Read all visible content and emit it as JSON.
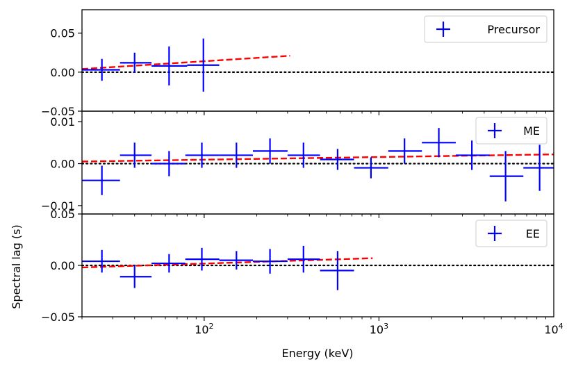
{
  "chart_data": {
    "type": "scatter",
    "layout": "three vertically stacked panels sharing a logarithmic x axis",
    "xscale": "log",
    "xlim": [
      20,
      10000
    ],
    "xlabel": "Energy (keV)",
    "ylabel": "Spectral lag (s)",
    "x_ticks": [
      {
        "value": 100,
        "base": "10",
        "exp": "2"
      },
      {
        "value": 1000,
        "base": "10",
        "exp": "3"
      },
      {
        "value": 10000,
        "base": "10",
        "exp": "4"
      }
    ],
    "colors": {
      "data": "#0000ff",
      "fit": "#ff0000",
      "zero_line": "#000000"
    },
    "panels": [
      {
        "name": "Precursor",
        "legend": "Precursor",
        "ylim": [
          -0.05,
          0.08
        ],
        "yticks": [
          -0.05,
          0.0,
          0.05
        ],
        "ytick_labels": [
          "−0.05",
          "0.00",
          "0.05"
        ],
        "points": [
          {
            "x": 26,
            "xlo": 20,
            "xhi": 33,
            "y": 0.003,
            "yerr": 0.014
          },
          {
            "x": 40,
            "xlo": 33,
            "xhi": 50,
            "y": 0.012,
            "yerr": 0.013
          },
          {
            "x": 63,
            "xlo": 50,
            "xhi": 80,
            "y": 0.008,
            "yerr": 0.025
          },
          {
            "x": 99,
            "xlo": 80,
            "xhi": 122,
            "y": 0.009,
            "yerr": 0.034
          }
        ],
        "fit_line": {
          "x": [
            20,
            310
          ],
          "y": [
            0.004,
            0.021
          ]
        }
      },
      {
        "name": "ME",
        "legend": "ME",
        "ylim": [
          -0.012,
          0.0125
        ],
        "yticks": [
          -0.01,
          0.0,
          0.01
        ],
        "ytick_labels": [
          "−0.01",
          "0.00",
          "0.01"
        ],
        "points": [
          {
            "x": 26,
            "xlo": 20,
            "xhi": 33,
            "y": -0.004,
            "yerr": 0.0035
          },
          {
            "x": 40,
            "xlo": 33,
            "xhi": 50,
            "y": 0.002,
            "yerr": 0.003
          },
          {
            "x": 63,
            "xlo": 50,
            "xhi": 78,
            "y": 0.0,
            "yerr": 0.003
          },
          {
            "x": 97,
            "xlo": 78,
            "xhi": 122,
            "y": 0.002,
            "yerr": 0.003
          },
          {
            "x": 153,
            "xlo": 122,
            "xhi": 190,
            "y": 0.002,
            "yerr": 0.003
          },
          {
            "x": 238,
            "xlo": 190,
            "xhi": 300,
            "y": 0.003,
            "yerr": 0.003
          },
          {
            "x": 370,
            "xlo": 300,
            "xhi": 460,
            "y": 0.002,
            "yerr": 0.003
          },
          {
            "x": 580,
            "xlo": 460,
            "xhi": 720,
            "y": 0.001,
            "yerr": 0.0025
          },
          {
            "x": 900,
            "xlo": 720,
            "xhi": 1130,
            "y": -0.001,
            "yerr": 0.0025
          },
          {
            "x": 1400,
            "xlo": 1130,
            "xhi": 1760,
            "y": 0.003,
            "yerr": 0.003
          },
          {
            "x": 2200,
            "xlo": 1760,
            "xhi": 2750,
            "y": 0.005,
            "yerr": 0.0035
          },
          {
            "x": 3400,
            "xlo": 2750,
            "xhi": 4300,
            "y": 0.002,
            "yerr": 0.0035
          },
          {
            "x": 5300,
            "xlo": 4300,
            "xhi": 6700,
            "y": -0.003,
            "yerr": 0.006
          },
          {
            "x": 8300,
            "xlo": 6700,
            "xhi": 10000,
            "y": -0.001,
            "yerr": 0.0055
          }
        ],
        "fit_line": {
          "x": [
            20,
            10000
          ],
          "y": [
            0.0005,
            0.0022
          ]
        }
      },
      {
        "name": "EE",
        "legend": "EE",
        "ylim": [
          -0.05,
          0.05
        ],
        "yticks": [
          -0.05,
          0.0,
          0.05
        ],
        "ytick_labels": [
          "−0.05",
          "0.00",
          "0.05"
        ],
        "points": [
          {
            "x": 26,
            "xlo": 20,
            "xhi": 33,
            "y": 0.004,
            "yerr": 0.011
          },
          {
            "x": 40,
            "xlo": 33,
            "xhi": 50,
            "y": -0.011,
            "yerr": 0.011
          },
          {
            "x": 63,
            "xlo": 50,
            "xhi": 78,
            "y": 0.002,
            "yerr": 0.009
          },
          {
            "x": 97,
            "xlo": 78,
            "xhi": 122,
            "y": 0.006,
            "yerr": 0.011
          },
          {
            "x": 153,
            "xlo": 122,
            "xhi": 190,
            "y": 0.005,
            "yerr": 0.009
          },
          {
            "x": 238,
            "xlo": 190,
            "xhi": 300,
            "y": 0.004,
            "yerr": 0.012
          },
          {
            "x": 370,
            "xlo": 300,
            "xhi": 460,
            "y": 0.006,
            "yerr": 0.013
          },
          {
            "x": 580,
            "xlo": 460,
            "xhi": 720,
            "y": -0.005,
            "yerr": 0.019
          }
        ],
        "fit_line": {
          "x": [
            20,
            920
          ],
          "y": [
            -0.002,
            0.007
          ]
        }
      }
    ]
  }
}
